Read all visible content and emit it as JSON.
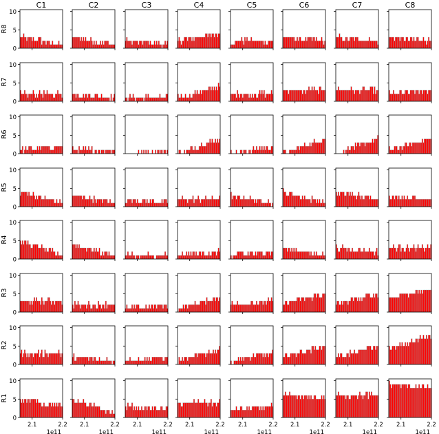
{
  "chart_data": {
    "type": "bar",
    "layout": "8x8 small-multiple grid of bar histograms",
    "column_titles": [
      "C1",
      "C2",
      "C3",
      "C4",
      "C5",
      "C6",
      "C7",
      "C8"
    ],
    "row_labels": [
      "R8",
      "R7",
      "R6",
      "R5",
      "R4",
      "R3",
      "R2",
      "R1"
    ],
    "x_ticks": [
      "2.1",
      "2.2"
    ],
    "x_tick_values": [
      210000000000.0,
      220000000000.0
    ],
    "x_offset_label": "1e11",
    "xlim": [
      206000000000.0,
      220000000000.0
    ],
    "y_ticks": [
      "0",
      "5",
      "10"
    ],
    "ylim": [
      0,
      10.5
    ],
    "bar_color": "#ff0000",
    "bar_edge_color": "#999999",
    "bins_per_panel": 40,
    "panel_profiles": {
      "R8": [
        [
          3,
          1
        ],
        [
          3,
          1
        ],
        [
          2,
          1
        ],
        [
          2,
          4
        ],
        [
          2,
          2
        ],
        [
          3,
          2
        ],
        [
          3,
          2
        ],
        [
          3,
          2
        ]
      ],
      "R7": [
        [
          2,
          2
        ],
        [
          2,
          1
        ],
        [
          1,
          1
        ],
        [
          1,
          4
        ],
        [
          2,
          2
        ],
        [
          3,
          3
        ],
        [
          3,
          3
        ],
        [
          2,
          3
        ]
      ],
      "R6": [
        [
          1,
          2
        ],
        [
          1,
          1
        ],
        [
          0,
          1
        ],
        [
          0,
          4
        ],
        [
          0,
          2
        ],
        [
          0,
          4
        ],
        [
          0,
          4
        ],
        [
          1,
          4
        ]
      ],
      "R5": [
        [
          4,
          1
        ],
        [
          3,
          1
        ],
        [
          2,
          1
        ],
        [
          2,
          2
        ],
        [
          3,
          1
        ],
        [
          4,
          1
        ],
        [
          4,
          2
        ],
        [
          3,
          2
        ]
      ],
      "R4": [
        [
          5,
          1
        ],
        [
          4,
          1
        ],
        [
          1,
          1
        ],
        [
          1,
          2
        ],
        [
          1,
          2
        ],
        [
          3,
          1
        ],
        [
          3,
          2
        ],
        [
          3,
          3
        ]
      ],
      "R3": [
        [
          3,
          3
        ],
        [
          2,
          2
        ],
        [
          1,
          2
        ],
        [
          1,
          4
        ],
        [
          2,
          3
        ],
        [
          2,
          5
        ],
        [
          2,
          5
        ],
        [
          4,
          6
        ]
      ],
      "R2": [
        [
          3,
          3
        ],
        [
          2,
          1
        ],
        [
          1,
          2
        ],
        [
          1,
          4
        ],
        [
          1,
          3
        ],
        [
          2,
          5
        ],
        [
          2,
          5
        ],
        [
          4,
          8
        ]
      ],
      "R1": [
        [
          5,
          3
        ],
        [
          5,
          1
        ],
        [
          3,
          2
        ],
        [
          4,
          4
        ],
        [
          2,
          3
        ],
        [
          6,
          5
        ],
        [
          6,
          6
        ],
        [
          9,
          8
        ]
      ]
    }
  }
}
